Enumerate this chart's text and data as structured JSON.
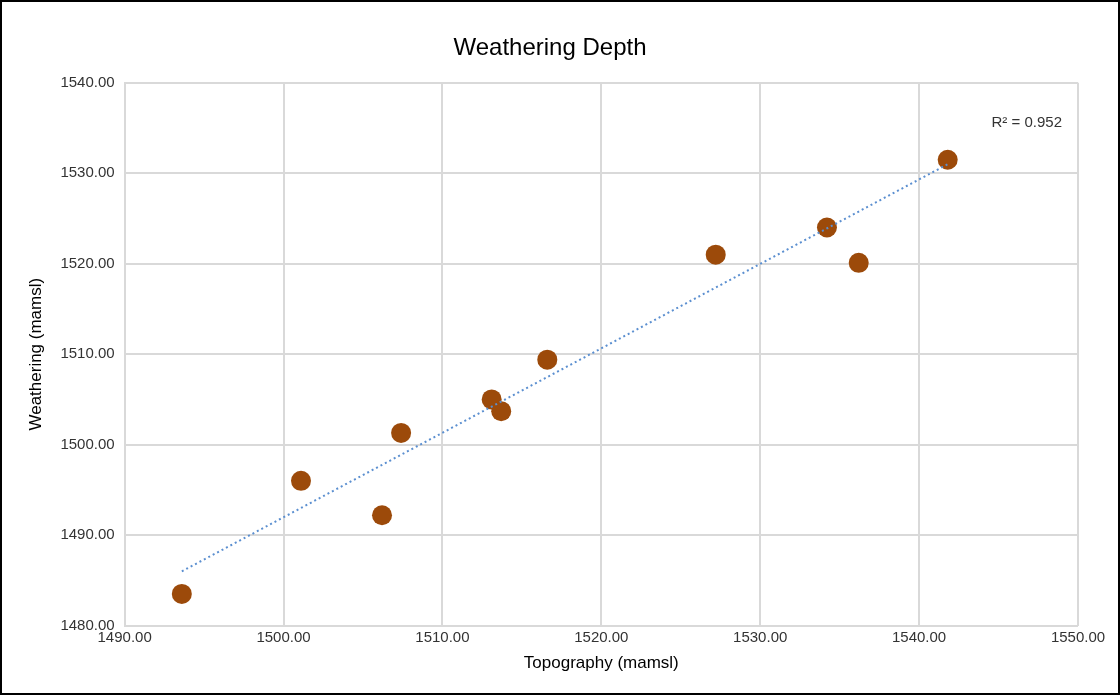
{
  "chart_data": {
    "type": "scatter",
    "title": "Weathering Depth",
    "xlabel": "Topography (mamsl)",
    "ylabel": "Weathering (mamsl)",
    "xlim": [
      1490,
      1550
    ],
    "xticks": [
      {
        "value": 1490,
        "label": "1490.00"
      },
      {
        "value": 1500,
        "label": "1500.00"
      },
      {
        "value": 1510,
        "label": "1510.00"
      },
      {
        "value": 1520,
        "label": "1520.00"
      },
      {
        "value": 1530,
        "label": "1530.00"
      },
      {
        "value": 1540,
        "label": "1540.00"
      },
      {
        "value": 1550,
        "label": "1550.00"
      }
    ],
    "ylim": [
      1480,
      1540
    ],
    "yticks": [
      {
        "value": 1480,
        "label": "1480.00"
      },
      {
        "value": 1490,
        "label": "1490.00"
      },
      {
        "value": 1500,
        "label": "1500.00"
      },
      {
        "value": 1510,
        "label": "1510.00"
      },
      {
        "value": 1520,
        "label": "1520.00"
      },
      {
        "value": 1530,
        "label": "1530.00"
      },
      {
        "value": 1540,
        "label": "1540.00"
      }
    ],
    "grid": true,
    "legend": false,
    "marker": "circle",
    "series": [
      {
        "color": "#9c4a0a",
        "x": [
          1493.6,
          1501.1,
          1506.2,
          1507.4,
          1513.1,
          1513.7,
          1516.6,
          1527.2,
          1534.2,
          1536.2,
          1541.8
        ],
        "values": [
          1483.5,
          1496.0,
          1492.2,
          1501.3,
          1505.0,
          1503.7,
          1509.4,
          1521.0,
          1524.0,
          1520.1,
          1531.5
        ]
      },
      {
        "type": "line",
        "color": "#5b8fd0",
        "line_style": "dotted",
        "marker": "none",
        "x": [
          1493.6,
          1541.8
        ],
        "values": [
          1486.0,
          1531.0
        ]
      }
    ],
    "annotations": [
      "R² = 0.952"
    ]
  }
}
